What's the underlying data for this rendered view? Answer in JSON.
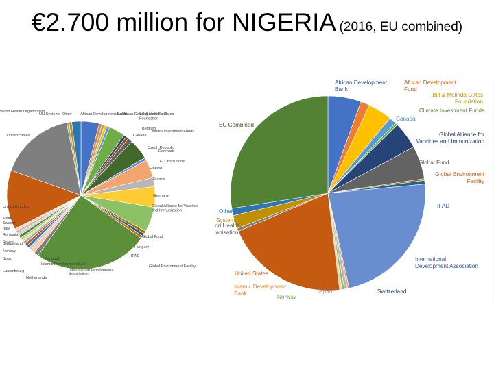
{
  "title": {
    "main": "€2.700 million for NIGERIA",
    "sub": "(2016, EU combined)"
  },
  "chart_data": [
    {
      "type": "pie",
      "title": "",
      "start_angle_deg": 0,
      "slices": [
        {
          "label": "African Development Bank",
          "value": 4.0,
          "color": "#4472c4"
        },
        {
          "label": "Austria",
          "value": 0.6,
          "color": "#ed7d31"
        },
        {
          "label": "African Development Fund",
          "value": 0.6,
          "color": "#a5a5a5"
        },
        {
          "label": "Bill & Melinda Gates Foundation",
          "value": 0.6,
          "color": "#ffc000"
        },
        {
          "label": "Belgium",
          "value": 0.6,
          "color": "#5b9bd5"
        },
        {
          "label": "Climate Investment Funds",
          "value": 3.5,
          "color": "#70ad47"
        },
        {
          "label": "Canada",
          "value": 0.6,
          "color": "#264478"
        },
        {
          "label": "Czech Republic",
          "value": 0.6,
          "color": "#9e480e"
        },
        {
          "label": "Denmark",
          "value": 1.0,
          "color": "#636363"
        },
        {
          "label": "EU Institutions",
          "value": 4.5,
          "color": "#43682b"
        },
        {
          "label": "Finland",
          "value": 0.6,
          "color": "#698ed0"
        },
        {
          "label": "France",
          "value": 4.0,
          "color": "#f4a46e"
        },
        {
          "label": "Germany",
          "value": 2.0,
          "color": "#b7b7b7"
        },
        {
          "label": "Global Alliance for Vaccines and Immunization",
          "value": 4.5,
          "color": "#ffcd33"
        },
        {
          "label": "Global Fund",
          "value": 5.5,
          "color": "#8cc168"
        },
        {
          "label": "Hungary",
          "value": 0.6,
          "color": "#997300"
        },
        {
          "label": "IFAD",
          "value": 0.6,
          "color": "#255e91"
        },
        {
          "label": "Global Environment Facility",
          "value": 0.6,
          "color": "#d2691e"
        },
        {
          "label": "International Development Association",
          "value": 25.0,
          "color": "#5b8f3a"
        },
        {
          "label": "Portugal",
          "value": 1.0,
          "color": "#7f7f7f"
        },
        {
          "label": "Islamic Development Bank",
          "value": 1.0,
          "color": "#f8cbad"
        },
        {
          "label": "Netherlands",
          "value": 0.6,
          "color": "#c9c9c9"
        },
        {
          "label": "Luxembourg",
          "value": 0.6,
          "color": "#2e75b6"
        },
        {
          "label": "Spain",
          "value": 0.6,
          "color": "#c55a11"
        },
        {
          "label": "Norway",
          "value": 0.6,
          "color": "#8faadc"
        },
        {
          "label": "Poland",
          "value": 0.5,
          "color": "#ffd966"
        },
        {
          "label": "Switzerland",
          "value": 0.5,
          "color": "#a9d18e"
        },
        {
          "label": "Romania",
          "value": 0.6,
          "color": "#548235"
        },
        {
          "label": "Italy",
          "value": 0.6,
          "color": "#bdd7ee"
        },
        {
          "label": "Sweden",
          "value": 0.6,
          "color": "#f4b183"
        },
        {
          "label": "Malta",
          "value": 0.5,
          "color": "#dbdbdb"
        },
        {
          "label": "United Kingdom",
          "value": 13.0,
          "color": "#c55a11"
        },
        {
          "label": "United States",
          "value": 16.5,
          "color": "#7f7f7f"
        },
        {
          "label": "World Health Organisation",
          "value": 0.5,
          "color": "#a5a5a5"
        },
        {
          "label": "UN Systems",
          "value": 0.6,
          "color": "#bf9000"
        },
        {
          "label": "Other",
          "value": 2.0,
          "color": "#2f75b5"
        }
      ],
      "labels": [
        {
          "text": "World Health Organisation"
        },
        {
          "text": "UN Systems"
        },
        {
          "text": "Other"
        },
        {
          "text": "African Development Bank"
        },
        {
          "text": "Austria"
        },
        {
          "text": "African Development Fund"
        },
        {
          "text": "Bill & Melinda Gates Foundation"
        },
        {
          "text": "Belgium"
        },
        {
          "text": "Climate Investment Funds"
        },
        {
          "text": "Canada"
        },
        {
          "text": "Czech Republic"
        },
        {
          "text": "Denmark"
        },
        {
          "text": "EU Institutions"
        },
        {
          "text": "Finland"
        },
        {
          "text": "France"
        },
        {
          "text": "Germany"
        },
        {
          "text": "Global Alliance for Vaccines and Immunization"
        },
        {
          "text": "Global Fund"
        },
        {
          "text": "Hungary"
        },
        {
          "text": "IFAD"
        },
        {
          "text": "Global Environment Facility"
        },
        {
          "text": "International Development Association"
        },
        {
          "text": "Portugal"
        },
        {
          "text": "Islamic Development Bank"
        },
        {
          "text": "Netherlands"
        },
        {
          "text": "Luxembourg"
        },
        {
          "text": "Spain"
        },
        {
          "text": "Norway"
        },
        {
          "text": "Poland"
        },
        {
          "text": "Switzerland"
        },
        {
          "text": "Romania"
        },
        {
          "text": "Italy"
        },
        {
          "text": "Sweden"
        },
        {
          "text": "Malta"
        },
        {
          "text": "United Kingdom"
        },
        {
          "text": "United States"
        }
      ]
    },
    {
      "type": "pie",
      "title": "",
      "start_angle_deg": 0,
      "slices": [
        {
          "label": "African Development Bank",
          "value": 5.5,
          "color": "#4472c4"
        },
        {
          "label": "African Development Fund",
          "value": 1.5,
          "color": "#ed7d31"
        },
        {
          "label": "Bill & Melinda Gates Foundation",
          "value": 4.0,
          "color": "#ffc000"
        },
        {
          "label": "Canada",
          "value": 1.2,
          "color": "#5b9bd5"
        },
        {
          "label": "Climate Investment Funds",
          "value": 0.4,
          "color": "#70ad47"
        },
        {
          "label": "Global Alliance for Vaccines and Immunization",
          "value": 4.5,
          "color": "#264478"
        },
        {
          "label": "Global Fund",
          "value": 5.5,
          "color": "#636363"
        },
        {
          "label": "Global Environment Facility",
          "value": 0.3,
          "color": "#997300"
        },
        {
          "label": "IFAD",
          "value": 0.6,
          "color": "#255e91"
        },
        {
          "label": "International Development Association",
          "value": 23.0,
          "color": "#698ed0"
        },
        {
          "label": "Switzerland",
          "value": 0.3,
          "color": "#f4a46e"
        },
        {
          "label": "Japan",
          "value": 0.5,
          "color": "#b7b7b7"
        },
        {
          "label": "Norway",
          "value": 0.4,
          "color": "#8cc168"
        },
        {
          "label": "Islamic Development Bank",
          "value": 0.4,
          "color": "#f8cbad"
        },
        {
          "label": "United States",
          "value": 20.5,
          "color": "#c55a11"
        },
        {
          "label": "World Health Organisation",
          "value": 0.5,
          "color": "#7f7f7f"
        },
        {
          "label": "UN Systems",
          "value": 2.2,
          "color": "#bf9000"
        },
        {
          "label": "Other",
          "value": 1.2,
          "color": "#2e75b6"
        },
        {
          "label": "EU Combined",
          "value": 27.5,
          "color": "#548235"
        }
      ],
      "labels": [
        {
          "text": "African Development Bank",
          "color": "#2e5597"
        },
        {
          "text": "African Development Fund",
          "color": "#c55a11"
        },
        {
          "text": "Bill & Melinda Gates Foundation",
          "color": "#bf9000"
        },
        {
          "text": "Canada",
          "color": "#4a86c8"
        },
        {
          "text": "Climate Investment Funds",
          "color": "#548235"
        },
        {
          "text": "Global Alliance for Vaccines and Immunization",
          "color": "#1f3864"
        },
        {
          "text": "Global Fund",
          "color": "#595959"
        },
        {
          "text": "Global Environment Facility",
          "color": "#c55a11"
        },
        {
          "text": "IFAD",
          "color": "#2e5597"
        },
        {
          "text": "International Development Association",
          "color": "#2e5597"
        },
        {
          "text": "Switzerland",
          "color": "#1f3864"
        },
        {
          "text": "Japan",
          "color": "#a5a5a5"
        },
        {
          "text": "Norway",
          "color": "#70ad47"
        },
        {
          "text": "Islamic Development Bank",
          "color": "#ed7d31"
        },
        {
          "text": "United States",
          "color": "#c55a11"
        },
        {
          "text": "World Health Organisation",
          "color": "#595959"
        },
        {
          "text": "UN Systems",
          "color": "#bf9000"
        },
        {
          "text": "Other",
          "color": "#2e75b6"
        },
        {
          "text": "EU Combined",
          "color": "#375623"
        }
      ]
    }
  ]
}
